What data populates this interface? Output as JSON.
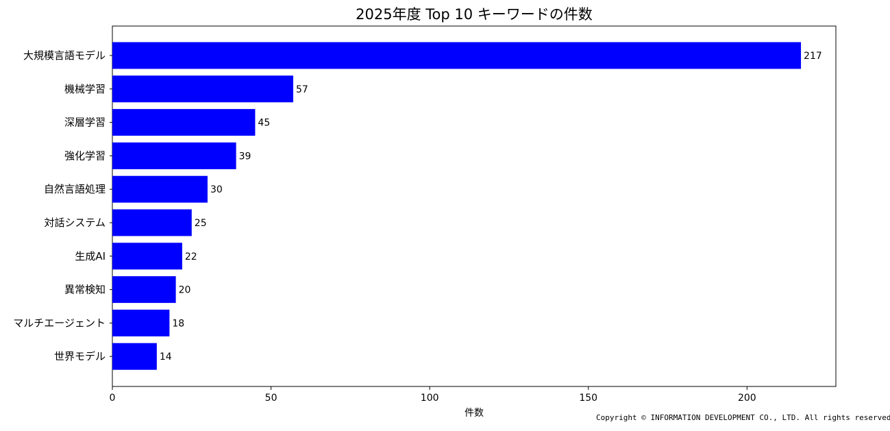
{
  "colors": {
    "bar": "#0000ff",
    "axis": "#000000",
    "background": "#ffffff"
  },
  "copyright": "Copyright © INFORMATION DEVELOPMENT CO., LTD. All rights reserved.",
  "chart_data": {
    "type": "bar",
    "orientation": "horizontal",
    "title": "2025年度 Top 10 キーワードの件数",
    "xlabel": "件数",
    "ylabel": "",
    "xlim": [
      0,
      228
    ],
    "xticks": [
      0,
      50,
      100,
      150,
      200
    ],
    "grid": false,
    "categories": [
      "大規模言語モデル",
      "機械学習",
      "深層学習",
      "強化学習",
      "自然言語処理",
      "対話システム",
      "生成AI",
      "異常検知",
      "マルチエージェント",
      "世界モデル"
    ],
    "values": [
      217,
      57,
      45,
      39,
      30,
      25,
      22,
      20,
      18,
      14
    ]
  }
}
